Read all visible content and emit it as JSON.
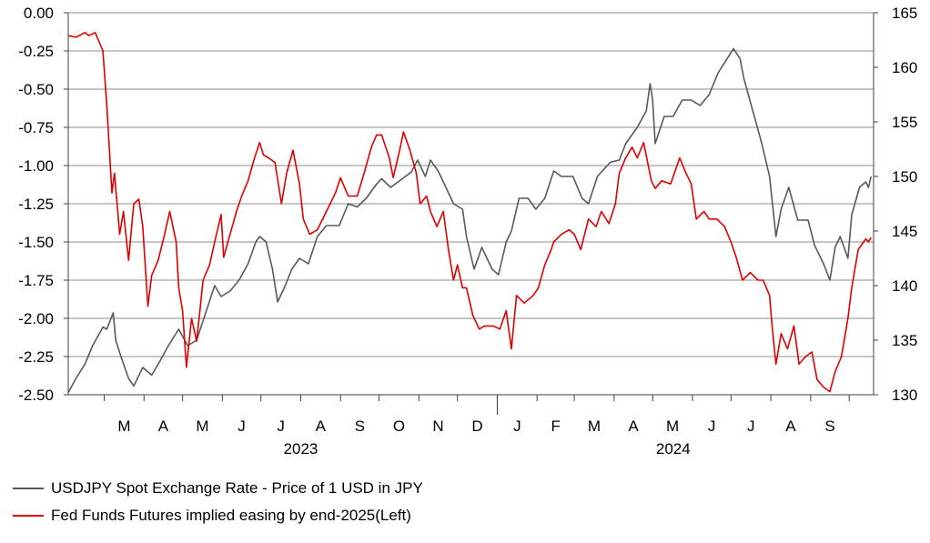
{
  "chart_data": {
    "type": "line",
    "title": "",
    "left_axis": {
      "ylim": [
        -2.5,
        0.0
      ],
      "ticks": [
        "0.00",
        "-0.25",
        "-0.50",
        "-0.75",
        "-1.00",
        "-1.25",
        "-1.50",
        "-1.75",
        "-2.00",
        "-2.25",
        "-2.50"
      ]
    },
    "right_axis": {
      "ylim": [
        130,
        165
      ],
      "ticks": [
        "165",
        "160",
        "155",
        "150",
        "145",
        "140",
        "135",
        "130"
      ]
    },
    "x_month_labels": [
      "M",
      "A",
      "M",
      "J",
      "J",
      "A",
      "S",
      "O",
      "N",
      "D",
      "J",
      "F",
      "M",
      "A",
      "M",
      "J",
      "J",
      "A",
      "S"
    ],
    "x_year_labels": [
      "2023",
      "2024"
    ],
    "grid": true,
    "legend_placement": "bottom-left",
    "series": [
      {
        "name": "USDJPY Spot Exchange Rate - Price of 1 USD in JPY",
        "axis": "right",
        "color": "#595959",
        "values": [
          [
            "2023-02-01",
            130.2
          ],
          [
            "2023-02-07",
            131.5
          ],
          [
            "2023-02-14",
            132.8
          ],
          [
            "2023-02-20",
            134.5
          ],
          [
            "2023-02-28",
            136.2
          ],
          [
            "2023-03-03",
            136.0
          ],
          [
            "2023-03-08",
            137.5
          ],
          [
            "2023-03-10",
            135.0
          ],
          [
            "2023-03-14",
            133.5
          ],
          [
            "2023-03-20",
            131.5
          ],
          [
            "2023-03-24",
            130.8
          ],
          [
            "2023-03-31",
            132.5
          ],
          [
            "2023-04-07",
            131.8
          ],
          [
            "2023-04-13",
            133.0
          ],
          [
            "2023-04-20",
            134.5
          ],
          [
            "2023-04-28",
            136.0
          ],
          [
            "2023-05-05",
            134.5
          ],
          [
            "2023-05-12",
            135.0
          ],
          [
            "2023-05-19",
            137.5
          ],
          [
            "2023-05-26",
            140.0
          ],
          [
            "2023-05-31",
            139.0
          ],
          [
            "2023-06-07",
            139.5
          ],
          [
            "2023-06-14",
            140.5
          ],
          [
            "2023-06-21",
            142.0
          ],
          [
            "2023-06-27",
            144.0
          ],
          [
            "2023-06-30",
            144.5
          ],
          [
            "2023-07-05",
            144.0
          ],
          [
            "2023-07-10",
            141.5
          ],
          [
            "2023-07-14",
            138.5
          ],
          [
            "2023-07-20",
            140.0
          ],
          [
            "2023-07-25",
            141.5
          ],
          [
            "2023-07-31",
            142.5
          ],
          [
            "2023-08-07",
            142.0
          ],
          [
            "2023-08-14",
            144.5
          ],
          [
            "2023-08-21",
            145.5
          ],
          [
            "2023-08-31",
            145.5
          ],
          [
            "2023-09-07",
            147.5
          ],
          [
            "2023-09-14",
            147.2
          ],
          [
            "2023-09-21",
            148.0
          ],
          [
            "2023-09-29",
            149.3
          ],
          [
            "2023-10-03",
            149.8
          ],
          [
            "2023-10-10",
            149.0
          ],
          [
            "2023-10-18",
            149.7
          ],
          [
            "2023-10-26",
            150.4
          ],
          [
            "2023-10-31",
            151.5
          ],
          [
            "2023-11-06",
            150.0
          ],
          [
            "2023-11-10",
            151.5
          ],
          [
            "2023-11-16",
            150.5
          ],
          [
            "2023-11-22",
            149.0
          ],
          [
            "2023-11-28",
            147.5
          ],
          [
            "2023-12-05",
            147.0
          ],
          [
            "2023-12-08",
            144.5
          ],
          [
            "2023-12-14",
            141.5
          ],
          [
            "2023-12-20",
            143.5
          ],
          [
            "2023-12-28",
            141.5
          ],
          [
            "2024-01-02",
            141.0
          ],
          [
            "2024-01-08",
            144.0
          ],
          [
            "2024-01-12",
            145.0
          ],
          [
            "2024-01-18",
            148.0
          ],
          [
            "2024-01-25",
            148.0
          ],
          [
            "2024-01-31",
            147.0
          ],
          [
            "2024-02-07",
            148.0
          ],
          [
            "2024-02-14",
            150.5
          ],
          [
            "2024-02-20",
            150.0
          ],
          [
            "2024-02-29",
            150.0
          ],
          [
            "2024-03-07",
            148.0
          ],
          [
            "2024-03-12",
            147.5
          ],
          [
            "2024-03-19",
            150.0
          ],
          [
            "2024-03-29",
            151.3
          ],
          [
            "2024-04-05",
            151.5
          ],
          [
            "2024-04-10",
            153.0
          ],
          [
            "2024-04-19",
            154.5
          ],
          [
            "2024-04-26",
            156.0
          ],
          [
            "2024-04-29",
            158.5
          ],
          [
            "2024-05-01",
            157.0
          ],
          [
            "2024-05-03",
            153.0
          ],
          [
            "2024-05-10",
            155.5
          ],
          [
            "2024-05-17",
            155.5
          ],
          [
            "2024-05-24",
            157.0
          ],
          [
            "2024-05-31",
            157.0
          ],
          [
            "2024-06-07",
            156.5
          ],
          [
            "2024-06-14",
            157.5
          ],
          [
            "2024-06-21",
            159.5
          ],
          [
            "2024-06-28",
            160.8
          ],
          [
            "2024-07-03",
            161.7
          ],
          [
            "2024-07-08",
            160.8
          ],
          [
            "2024-07-11",
            159.0
          ],
          [
            "2024-07-18",
            156.0
          ],
          [
            "2024-07-25",
            153.0
          ],
          [
            "2024-07-31",
            150.0
          ],
          [
            "2024-08-05",
            144.5
          ],
          [
            "2024-08-09",
            147.0
          ],
          [
            "2024-08-15",
            149.0
          ],
          [
            "2024-08-22",
            146.0
          ],
          [
            "2024-08-30",
            146.0
          ],
          [
            "2024-09-04",
            143.7
          ],
          [
            "2024-09-11",
            142.0
          ],
          [
            "2024-09-16",
            140.5
          ],
          [
            "2024-09-20",
            143.5
          ],
          [
            "2024-09-24",
            144.5
          ],
          [
            "2024-09-30",
            142.5
          ],
          [
            "2024-10-03",
            146.5
          ],
          [
            "2024-10-09",
            149.0
          ],
          [
            "2024-10-14",
            149.5
          ],
          [
            "2024-10-16",
            149.0
          ],
          [
            "2024-10-18",
            150.0
          ]
        ]
      },
      {
        "name": "Fed Funds Futures implied easing by end-2025(Left)",
        "axis": "left",
        "color": "#e00000",
        "values": [
          [
            "2023-02-01",
            -0.15
          ],
          [
            "2023-02-07",
            -0.16
          ],
          [
            "2023-02-14",
            -0.13
          ],
          [
            "2023-02-17",
            -0.15
          ],
          [
            "2023-02-22",
            -0.13
          ],
          [
            "2023-02-28",
            -0.25
          ],
          [
            "2023-03-03",
            -0.6
          ],
          [
            "2023-03-07",
            -1.18
          ],
          [
            "2023-03-09",
            -1.05
          ],
          [
            "2023-03-13",
            -1.45
          ],
          [
            "2023-03-16",
            -1.3
          ],
          [
            "2023-03-20",
            -1.62
          ],
          [
            "2023-03-24",
            -1.25
          ],
          [
            "2023-03-28",
            -1.22
          ],
          [
            "2023-03-31",
            -1.4
          ],
          [
            "2023-04-04",
            -1.92
          ],
          [
            "2023-04-07",
            -1.72
          ],
          [
            "2023-04-12",
            -1.62
          ],
          [
            "2023-04-17",
            -1.45
          ],
          [
            "2023-04-21",
            -1.3
          ],
          [
            "2023-04-26",
            -1.5
          ],
          [
            "2023-04-28",
            -1.8
          ],
          [
            "2023-05-01",
            -1.95
          ],
          [
            "2023-05-04",
            -2.32
          ],
          [
            "2023-05-08",
            -2.0
          ],
          [
            "2023-05-12",
            -2.15
          ],
          [
            "2023-05-17",
            -1.75
          ],
          [
            "2023-05-22",
            -1.65
          ],
          [
            "2023-05-26",
            -1.5
          ],
          [
            "2023-05-31",
            -1.32
          ],
          [
            "2023-06-02",
            -1.6
          ],
          [
            "2023-06-07",
            -1.45
          ],
          [
            "2023-06-12",
            -1.3
          ],
          [
            "2023-06-16",
            -1.2
          ],
          [
            "2023-06-21",
            -1.1
          ],
          [
            "2023-06-26",
            -0.95
          ],
          [
            "2023-06-30",
            -0.85
          ],
          [
            "2023-07-03",
            -0.93
          ],
          [
            "2023-07-07",
            -0.95
          ],
          [
            "2023-07-12",
            -0.98
          ],
          [
            "2023-07-17",
            -1.25
          ],
          [
            "2023-07-21",
            -1.05
          ],
          [
            "2023-07-26",
            -0.9
          ],
          [
            "2023-07-31",
            -1.12
          ],
          [
            "2023-08-03",
            -1.35
          ],
          [
            "2023-08-08",
            -1.45
          ],
          [
            "2023-08-14",
            -1.42
          ],
          [
            "2023-08-21",
            -1.3
          ],
          [
            "2023-08-28",
            -1.18
          ],
          [
            "2023-09-01",
            -1.08
          ],
          [
            "2023-09-07",
            -1.2
          ],
          [
            "2023-09-14",
            -1.2
          ],
          [
            "2023-09-20",
            -1.03
          ],
          [
            "2023-09-25",
            -0.88
          ],
          [
            "2023-09-29",
            -0.8
          ],
          [
            "2023-10-03",
            -0.8
          ],
          [
            "2023-10-09",
            -0.95
          ],
          [
            "2023-10-12",
            -1.08
          ],
          [
            "2023-10-17",
            -0.9
          ],
          [
            "2023-10-20",
            -0.78
          ],
          [
            "2023-10-25",
            -0.9
          ],
          [
            "2023-10-30",
            -1.05
          ],
          [
            "2023-11-02",
            -1.25
          ],
          [
            "2023-11-07",
            -1.2
          ],
          [
            "2023-11-10",
            -1.3
          ],
          [
            "2023-11-15",
            -1.4
          ],
          [
            "2023-11-20",
            -1.3
          ],
          [
            "2023-11-24",
            -1.55
          ],
          [
            "2023-11-28",
            -1.75
          ],
          [
            "2023-12-01",
            -1.65
          ],
          [
            "2023-12-05",
            -1.8
          ],
          [
            "2023-12-08",
            -1.8
          ],
          [
            "2023-12-13",
            -1.98
          ],
          [
            "2023-12-18",
            -2.07
          ],
          [
            "2023-12-22",
            -2.05
          ],
          [
            "2023-12-29",
            -2.05
          ],
          [
            "2024-01-03",
            -2.07
          ],
          [
            "2024-01-08",
            -1.95
          ],
          [
            "2024-01-12",
            -2.2
          ],
          [
            "2024-01-16",
            -1.85
          ],
          [
            "2024-01-22",
            -1.9
          ],
          [
            "2024-01-29",
            -1.85
          ],
          [
            "2024-02-02",
            -1.8
          ],
          [
            "2024-02-07",
            -1.65
          ],
          [
            "2024-02-12",
            -1.55
          ],
          [
            "2024-02-14",
            -1.5
          ],
          [
            "2024-02-20",
            -1.45
          ],
          [
            "2024-02-26",
            -1.42
          ],
          [
            "2024-03-01",
            -1.45
          ],
          [
            "2024-03-06",
            -1.55
          ],
          [
            "2024-03-12",
            -1.35
          ],
          [
            "2024-03-18",
            -1.4
          ],
          [
            "2024-03-22",
            -1.3
          ],
          [
            "2024-03-28",
            -1.38
          ],
          [
            "2024-04-02",
            -1.25
          ],
          [
            "2024-04-05",
            -1.05
          ],
          [
            "2024-04-10",
            -0.95
          ],
          [
            "2024-04-15",
            -0.88
          ],
          [
            "2024-04-19",
            -0.95
          ],
          [
            "2024-04-24",
            -0.85
          ],
          [
            "2024-04-30",
            -1.1
          ],
          [
            "2024-05-03",
            -1.15
          ],
          [
            "2024-05-08",
            -1.1
          ],
          [
            "2024-05-15",
            -1.12
          ],
          [
            "2024-05-22",
            -0.95
          ],
          [
            "2024-05-27",
            -1.05
          ],
          [
            "2024-05-31",
            -1.12
          ],
          [
            "2024-06-04",
            -1.35
          ],
          [
            "2024-06-10",
            -1.3
          ],
          [
            "2024-06-14",
            -1.35
          ],
          [
            "2024-06-20",
            -1.35
          ],
          [
            "2024-06-26",
            -1.4
          ],
          [
            "2024-07-01",
            -1.5
          ],
          [
            "2024-07-05",
            -1.6
          ],
          [
            "2024-07-10",
            -1.75
          ],
          [
            "2024-07-16",
            -1.7
          ],
          [
            "2024-07-22",
            -1.75
          ],
          [
            "2024-07-26",
            -1.75
          ],
          [
            "2024-07-31",
            -1.85
          ],
          [
            "2024-08-02",
            -2.05
          ],
          [
            "2024-08-05",
            -2.3
          ],
          [
            "2024-08-09",
            -2.1
          ],
          [
            "2024-08-14",
            -2.2
          ],
          [
            "2024-08-19",
            -2.05
          ],
          [
            "2024-08-23",
            -2.3
          ],
          [
            "2024-08-28",
            -2.25
          ],
          [
            "2024-09-02",
            -2.22
          ],
          [
            "2024-09-06",
            -2.4
          ],
          [
            "2024-09-11",
            -2.45
          ],
          [
            "2024-09-16",
            -2.48
          ],
          [
            "2024-09-20",
            -2.35
          ],
          [
            "2024-09-25",
            -2.25
          ],
          [
            "2024-09-30",
            -2.0
          ],
          [
            "2024-10-03",
            -1.8
          ],
          [
            "2024-10-08",
            -1.55
          ],
          [
            "2024-10-14",
            -1.48
          ],
          [
            "2024-10-16",
            -1.5
          ],
          [
            "2024-10-18",
            -1.47
          ]
        ]
      }
    ]
  }
}
